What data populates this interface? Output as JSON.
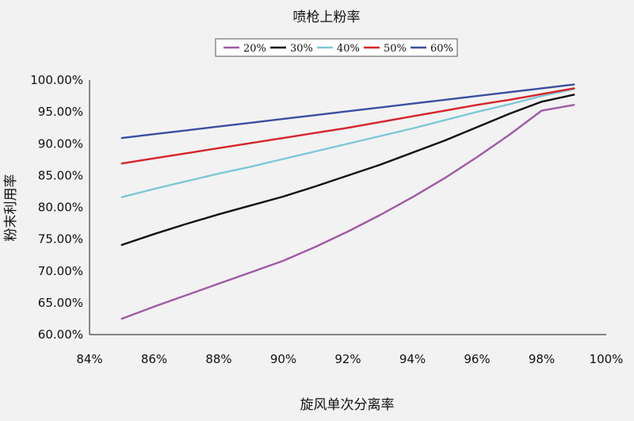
{
  "chart_data": {
    "type": "line",
    "title": "喷枪上粉率",
    "xlabel": "旋风单次分离率",
    "ylabel": "粉末利用率",
    "xlim": [
      0.84,
      1.0
    ],
    "ylim": [
      0.6,
      1.0
    ],
    "x_ticks": [
      "84%",
      "86%",
      "88%",
      "90%",
      "92%",
      "94%",
      "96%",
      "98%",
      "100%"
    ],
    "y_ticks": [
      "60.00%",
      "65.00%",
      "70.00%",
      "75.00%",
      "80.00%",
      "85.00%",
      "90.00%",
      "95.00%",
      "100.00%"
    ],
    "x": [
      0.85,
      0.86,
      0.87,
      0.88,
      0.89,
      0.9,
      0.91,
      0.92,
      0.93,
      0.94,
      0.95,
      0.96,
      0.97,
      0.98,
      0.99
    ],
    "series": [
      {
        "name": "20%",
        "color": "#a05aa5",
        "values": [
          0.625,
          0.644,
          0.662,
          0.68,
          0.698,
          0.716,
          0.738,
          0.762,
          0.788,
          0.816,
          0.846,
          0.879,
          0.914,
          0.952,
          0.961
        ]
      },
      {
        "name": "30%",
        "color": "#111111",
        "values": [
          0.741,
          0.758,
          0.774,
          0.789,
          0.803,
          0.817,
          0.833,
          0.85,
          0.867,
          0.886,
          0.905,
          0.926,
          0.947,
          0.966,
          0.977
        ]
      },
      {
        "name": "40%",
        "color": "#7cc8d8",
        "values": [
          0.816,
          0.829,
          0.841,
          0.853,
          0.864,
          0.876,
          0.888,
          0.9,
          0.912,
          0.924,
          0.937,
          0.95,
          0.962,
          0.975,
          0.986
        ]
      },
      {
        "name": "50%",
        "color": "#d8232a",
        "values": [
          0.869,
          0.877,
          0.885,
          0.893,
          0.901,
          0.909,
          0.917,
          0.925,
          0.934,
          0.943,
          0.952,
          0.961,
          0.969,
          0.978,
          0.987
        ]
      },
      {
        "name": "60%",
        "color": "#3a4fa0",
        "values": [
          0.909,
          0.915,
          0.921,
          0.927,
          0.933,
          0.939,
          0.945,
          0.951,
          0.957,
          0.963,
          0.969,
          0.975,
          0.981,
          0.987,
          0.993
        ]
      }
    ],
    "grid": false,
    "legend_position": "top-center"
  }
}
